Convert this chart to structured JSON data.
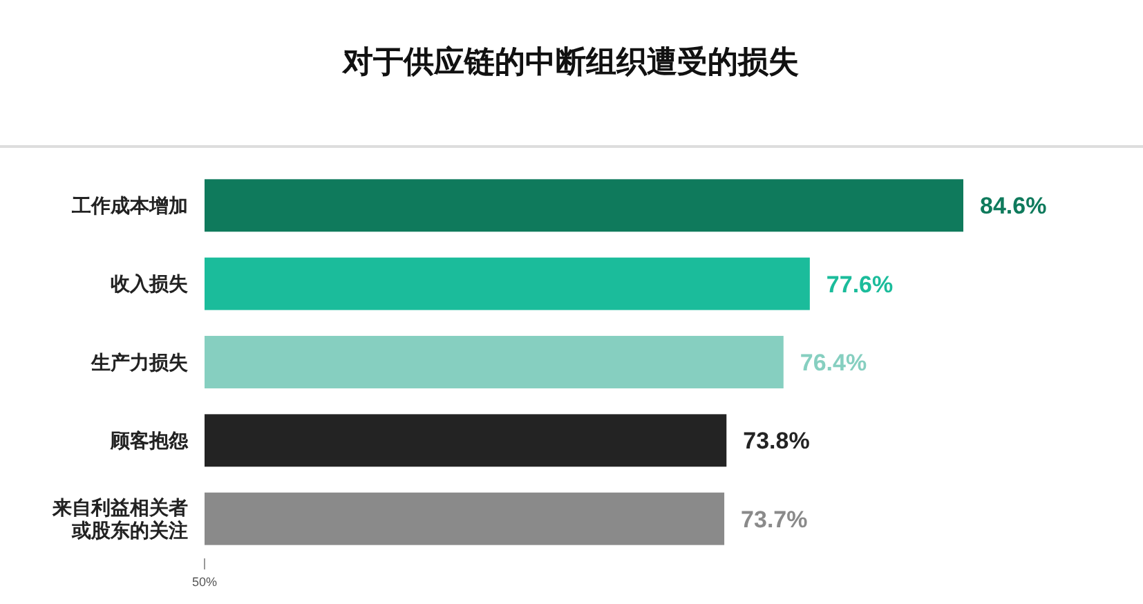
{
  "chart_data": {
    "type": "bar",
    "orientation": "horizontal",
    "title": "对于供应链的中断组织遭受的损失",
    "categories": [
      "工作成本增加",
      "收入损失",
      "生产力损失",
      "顾客抱怨",
      "来自利益相关者或股东的关注"
    ],
    "values": [
      84.6,
      77.6,
      76.4,
      73.8,
      73.7
    ],
    "colors": [
      "#0f7a5c",
      "#1bbc9b",
      "#86cfc0",
      "#232323",
      "#8a8a8a"
    ],
    "value_labels": [
      "84.6%",
      "77.6%",
      "76.4%",
      "73.8%",
      "73.7%"
    ],
    "xlim": [
      50,
      84.6
    ],
    "annotations": [
      "50%"
    ]
  }
}
